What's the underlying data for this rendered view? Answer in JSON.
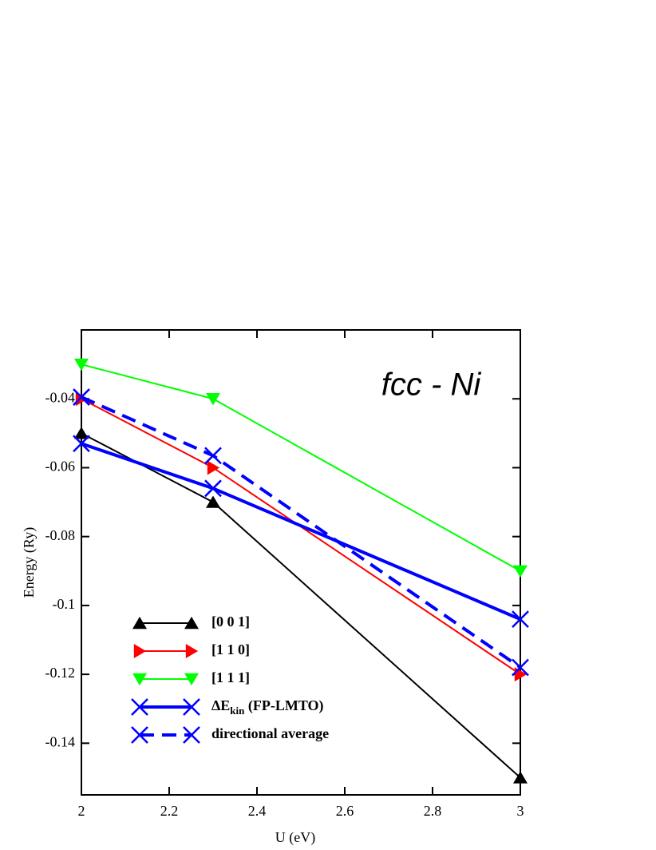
{
  "chart_data": {
    "type": "line",
    "annotation": "fcc - Ni",
    "x_label": "U (eV)",
    "y_label": "Energy (Ry)",
    "xlim": [
      2,
      3
    ],
    "ylim": [
      -0.155,
      -0.02
    ],
    "xticks": [
      2,
      2.2,
      2.4,
      2.6,
      2.8,
      3
    ],
    "yticks": [
      -0.14,
      -0.12,
      -0.1,
      -0.08,
      -0.06,
      -0.04
    ],
    "x": [
      2,
      2.3,
      3
    ],
    "series": [
      {
        "name": "[0 0 1]",
        "color": "#000000",
        "marker": "triangle-up",
        "linestyle": "solid",
        "values": [
          -0.05,
          -0.07,
          -0.15
        ]
      },
      {
        "name": "[1 1 0]",
        "color": "#ff0000",
        "marker": "triangle-right",
        "linestyle": "solid",
        "values": [
          -0.04,
          -0.06,
          -0.12
        ]
      },
      {
        "name": "[1 1 1]",
        "color": "#00ff00",
        "marker": "triangle-down",
        "linestyle": "solid",
        "values": [
          -0.03,
          -0.04,
          -0.09
        ]
      },
      {
        "name": "ΔEkin (FP-LMTO)",
        "color": "#0000ff",
        "marker": "x",
        "linestyle": "thick",
        "values": [
          -0.053,
          -0.066,
          -0.104
        ]
      },
      {
        "name": "directional average",
        "color": "#0000ff",
        "marker": "x",
        "linestyle": "dashed",
        "values": [
          -0.0395,
          -0.0565,
          -0.118
        ]
      }
    ]
  }
}
